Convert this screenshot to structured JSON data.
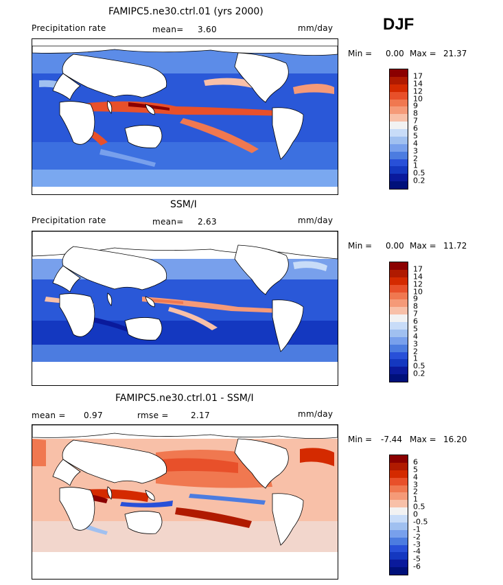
{
  "season": "DJF",
  "panels": [
    {
      "title": "FAMIPC5.ne30.ctrl.01 (yrs 2000)",
      "left_label": "Precipitation rate",
      "mean_label": "mean=",
      "mean_value": "3.60",
      "units": "mm/day",
      "min_label": "Min =",
      "min_value": "0.00",
      "max_label": "Max =",
      "max_value": "21.37",
      "colorbar_labels": [
        "17",
        "14",
        "12",
        "10",
        "9",
        "8",
        "7",
        "6",
        "5",
        "4",
        "3",
        "2",
        "1",
        "0.5",
        "0.2"
      ]
    },
    {
      "title": "SSM/I",
      "left_label": "Precipitation rate",
      "mean_label": "mean=",
      "mean_value": "2.63",
      "units": "mm/day",
      "min_label": "Min =",
      "min_value": "0.00",
      "max_label": "Max =",
      "max_value": "11.72",
      "colorbar_labels": [
        "17",
        "14",
        "12",
        "10",
        "9",
        "8",
        "7",
        "6",
        "5",
        "4",
        "3",
        "2",
        "1",
        "0.5",
        "0.2"
      ]
    },
    {
      "title": "FAMIPC5.ne30.ctrl.01 - SSM/I",
      "mean_label": "mean =",
      "mean_value": "0.97",
      "rmse_label": "rmse =",
      "rmse_value": "2.17",
      "units": "mm/day",
      "min_label": "Min =",
      "min_value": "-7.44",
      "max_label": "Max =",
      "max_value": "16.20",
      "colorbar_labels": [
        "6",
        "5",
        "4",
        "3",
        "2",
        "1",
        "0.5",
        "0",
        "-0.5",
        "-1",
        "-2",
        "-3",
        "-4",
        "-5",
        "-6"
      ]
    }
  ],
  "colors": {
    "precip_scale": [
      "#8b0000",
      "#b01a00",
      "#d42a00",
      "#e8502a",
      "#f07850",
      "#f59a78",
      "#f8c0a8",
      "#f2f2f2",
      "#c8dcf8",
      "#a0c0f0",
      "#78a0ec",
      "#4c7ce0",
      "#2850d8",
      "#1438c0",
      "#0a1a9c",
      "#00107a"
    ],
    "diff_scale": [
      "#8b0000",
      "#b01a00",
      "#d42a00",
      "#e8502a",
      "#f07850",
      "#f59a78",
      "#f8c0a8",
      "#f2f2f2",
      "#c8dcf8",
      "#a0c0f0",
      "#78a0ec",
      "#4c7ce0",
      "#2850d8",
      "#1438c0",
      "#0a1a9c",
      "#00107a"
    ]
  }
}
